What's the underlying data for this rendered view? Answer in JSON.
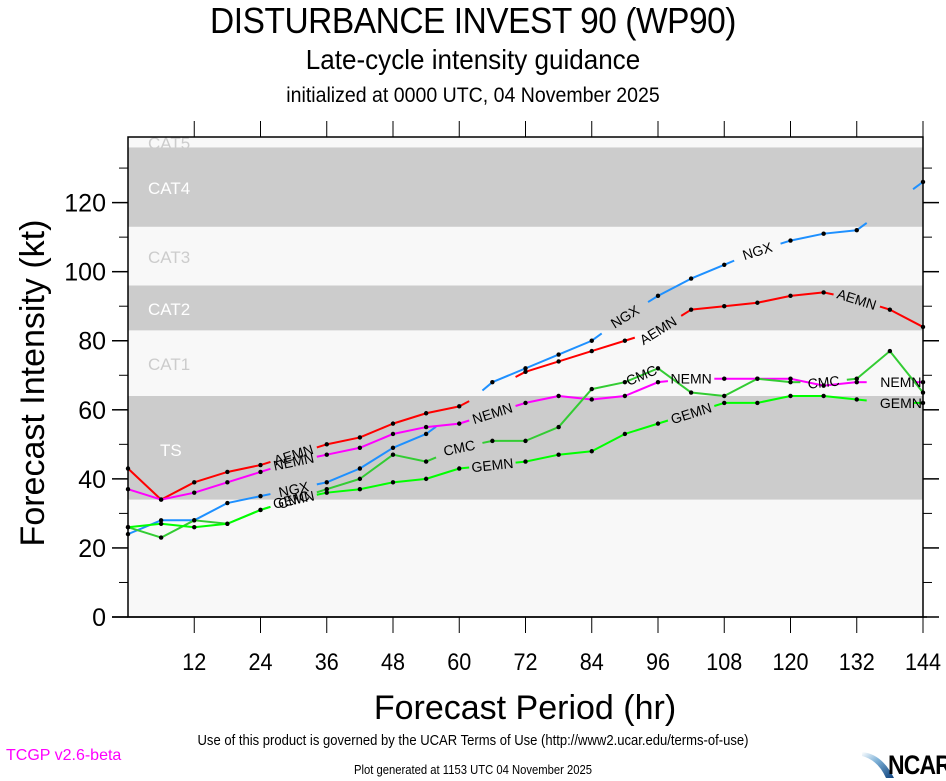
{
  "header": {
    "title": "DISTURBANCE INVEST 90 (WP90)",
    "subtitle": "Late-cycle intensity guidance",
    "init_line": "initialized at 0000 UTC, 04 November 2025"
  },
  "footer": {
    "terms": "Use of this product is governed by the UCAR Terms of Use (http://www2.ucar.edu/terms-of-use)",
    "generated": "Plot generated at 1153 UTC   04 November 2025",
    "version": "TCGP v2.6-beta",
    "logo_text": "NCAR",
    "version_color": "#ff00ff"
  },
  "chart_data": {
    "type": "line",
    "title": "DISTURBANCE INVEST 90 (WP90)",
    "xlabel": "Forecast Period (hr)",
    "ylabel": "Forecast Intensity (kt)",
    "xlim": [
      0,
      144
    ],
    "ylim": [
      0,
      139
    ],
    "xticks": [
      12,
      24,
      36,
      48,
      60,
      72,
      84,
      96,
      108,
      120,
      132,
      144
    ],
    "xtick_labels": [
      "12",
      "24",
      "36",
      "48",
      "60",
      "72",
      "84",
      "96",
      "108",
      "120",
      "132",
      "144"
    ],
    "yticks": [
      0,
      20,
      40,
      60,
      80,
      100,
      120
    ],
    "ytick_labels": [
      "0",
      "20",
      "40",
      "60",
      "80",
      "100",
      "120"
    ],
    "y_minor_ticks": [
      10,
      30,
      50,
      70,
      90,
      110,
      130
    ],
    "grid": false,
    "bands": [
      {
        "label": "TS",
        "from": 34,
        "to": 64,
        "shade": "dark"
      },
      {
        "label": "CAT1",
        "from": 64,
        "to": 83,
        "shade": "light"
      },
      {
        "label": "CAT2",
        "from": 83,
        "to": 96,
        "shade": "dark"
      },
      {
        "label": "CAT3",
        "from": 96,
        "to": 113,
        "shade": "light"
      },
      {
        "label": "CAT4",
        "from": 113,
        "to": 136,
        "shade": "dark"
      },
      {
        "label": "CAT5",
        "from": 136,
        "to": 139,
        "shade": "light"
      }
    ],
    "band_colors": {
      "dark": "#cccccc",
      "light": "#f8f8f8",
      "below": "#f8f8f8"
    },
    "x": [
      0,
      6,
      12,
      18,
      24,
      30,
      36,
      42,
      48,
      54,
      60,
      66,
      72,
      78,
      84,
      90,
      96,
      102,
      108,
      114,
      120,
      126,
      132,
      138,
      144
    ],
    "series": [
      {
        "name": "NGX",
        "color": "#1e90ff",
        "values": [
          24,
          28,
          28,
          33,
          35,
          37,
          39,
          43,
          49,
          53,
          60,
          68,
          72,
          76,
          80,
          87,
          93,
          98,
          102,
          106,
          109,
          111,
          112,
          119,
          126
        ],
        "label_at": [
          30,
          90,
          114
        ],
        "label_hidden_points": [
          30,
          60,
          90,
          114,
          138
        ]
      },
      {
        "name": "AEMN",
        "color": "#ff0000",
        "values": [
          43,
          34,
          39,
          42,
          44,
          47,
          50,
          52,
          56,
          59,
          61,
          66,
          71,
          74,
          77,
          80,
          83,
          89,
          90,
          91,
          93,
          94,
          92,
          89,
          84
        ],
        "label_at": [
          30,
          96,
          132
        ],
        "label_hidden_points": [
          30,
          66,
          96,
          132
        ]
      },
      {
        "name": "NEMN",
        "color": "#ff00ff",
        "values": [
          37,
          34,
          36,
          39,
          42,
          45,
          47,
          49,
          53,
          55,
          56,
          59,
          62,
          64,
          63,
          64,
          68,
          69,
          69,
          69,
          69,
          67,
          68,
          68,
          68
        ],
        "label_at": [
          30,
          66,
          102,
          140
        ],
        "label_hidden_points": [
          30,
          66,
          102,
          138
        ]
      },
      {
        "name": "CMC",
        "color": "#33cc33",
        "values": [
          26,
          23,
          28,
          27,
          31,
          34,
          37,
          40,
          47,
          45,
          49,
          51,
          51,
          55,
          66,
          68,
          72,
          65,
          64,
          69,
          68,
          68,
          69,
          77,
          65
        ],
        "label_at": [
          30,
          60,
          93,
          126
        ],
        "label_hidden_points": [
          30,
          60,
          126
        ]
      },
      {
        "name": "GEMN",
        "color": "#00ff00",
        "values": [
          26,
          27,
          26,
          27,
          31,
          34,
          36,
          37,
          39,
          40,
          43,
          44,
          45,
          47,
          48,
          53,
          56,
          59,
          62,
          62,
          64,
          64,
          63,
          62,
          62
        ],
        "label_at": [
          30,
          66,
          102,
          140
        ],
        "label_hidden_points": [
          30,
          66,
          102,
          138
        ]
      }
    ],
    "series_label_text": [
      "NGX",
      "AEMN",
      "NEMN",
      "CMC",
      "GEMN"
    ]
  }
}
